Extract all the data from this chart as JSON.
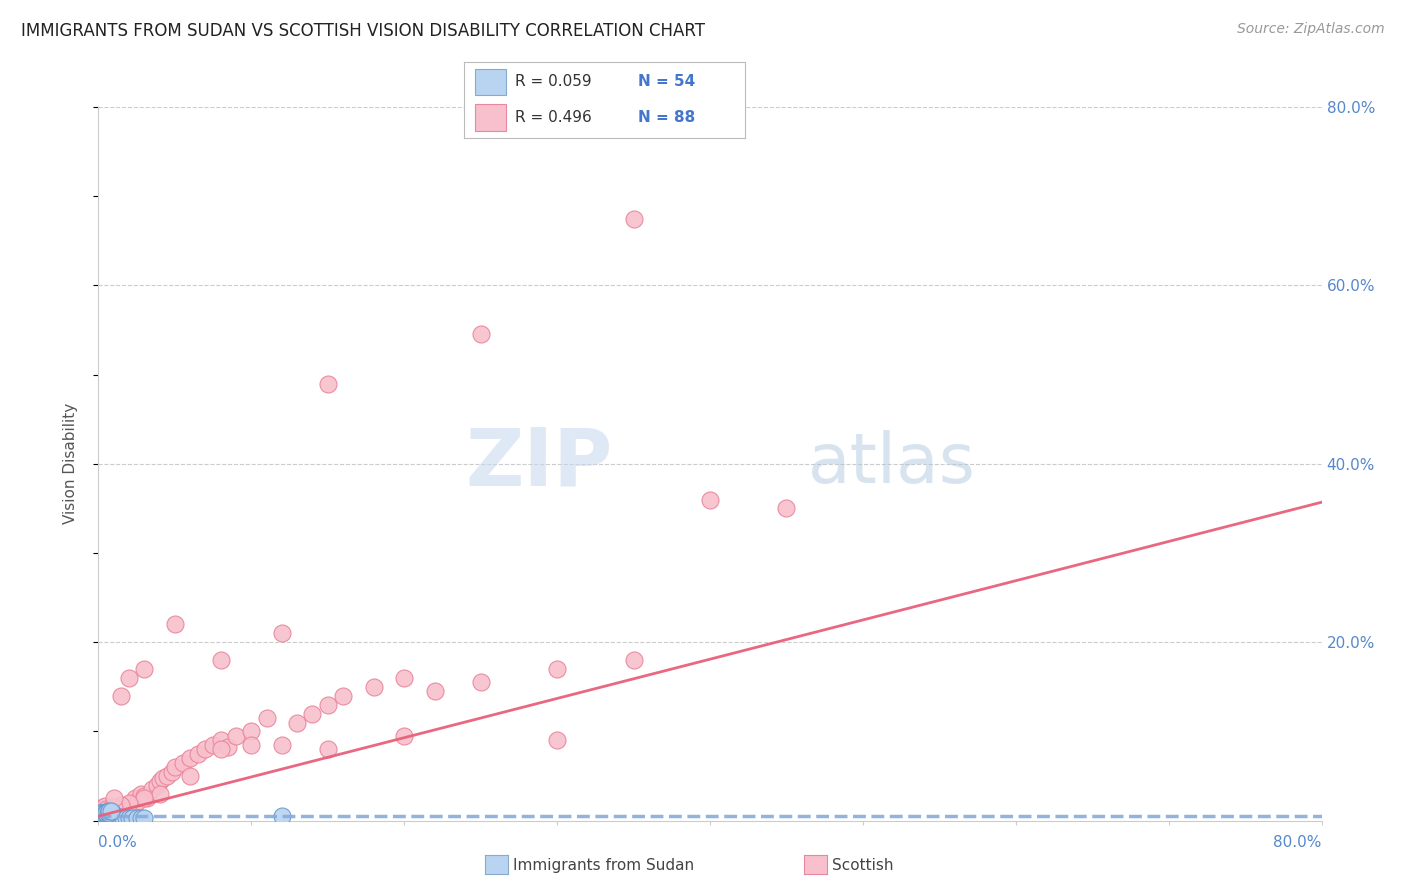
{
  "title": "IMMIGRANTS FROM SUDAN VS SCOTTISH VISION DISABILITY CORRELATION CHART",
  "source": "Source: ZipAtlas.com",
  "ylabel": "Vision Disability",
  "legend_r1": "R = 0.059",
  "legend_n1": "N = 54",
  "legend_r2": "R = 0.496",
  "legend_n2": "N = 88",
  "color_blue_fill": "#b8d4f0",
  "color_blue_edge": "#6699cc",
  "color_pink_fill": "#f8c0cc",
  "color_pink_edge": "#e8849a",
  "color_blue_line": "#88aadd",
  "color_pink_line": "#e8607a",
  "watermark_zip": "ZIP",
  "watermark_atlas": "atlas",
  "xlim": [
    0.0,
    0.8
  ],
  "ylim": [
    0.0,
    0.8
  ],
  "blue_scatter_x": [
    0.001,
    0.001,
    0.001,
    0.002,
    0.002,
    0.002,
    0.002,
    0.003,
    0.003,
    0.003,
    0.003,
    0.004,
    0.004,
    0.004,
    0.005,
    0.005,
    0.005,
    0.006,
    0.006,
    0.006,
    0.007,
    0.007,
    0.007,
    0.008,
    0.008,
    0.008,
    0.009,
    0.009,
    0.01,
    0.01,
    0.011,
    0.011,
    0.012,
    0.012,
    0.013,
    0.014,
    0.015,
    0.016,
    0.018,
    0.02,
    0.022,
    0.025,
    0.028,
    0.03,
    0.001,
    0.002,
    0.003,
    0.004,
    0.005,
    0.006,
    0.007,
    0.12,
    0.007,
    0.008
  ],
  "blue_scatter_y": [
    0.003,
    0.005,
    0.007,
    0.003,
    0.005,
    0.007,
    0.009,
    0.003,
    0.005,
    0.007,
    0.009,
    0.003,
    0.005,
    0.007,
    0.003,
    0.005,
    0.007,
    0.003,
    0.005,
    0.007,
    0.003,
    0.005,
    0.007,
    0.003,
    0.005,
    0.007,
    0.003,
    0.005,
    0.003,
    0.005,
    0.003,
    0.005,
    0.003,
    0.005,
    0.003,
    0.003,
    0.003,
    0.003,
    0.003,
    0.003,
    0.003,
    0.003,
    0.003,
    0.003,
    0.009,
    0.009,
    0.009,
    0.009,
    0.009,
    0.009,
    0.009,
    0.005,
    0.011,
    0.011
  ],
  "pink_scatter_x": [
    0.001,
    0.001,
    0.002,
    0.002,
    0.003,
    0.003,
    0.004,
    0.004,
    0.005,
    0.005,
    0.006,
    0.007,
    0.008,
    0.009,
    0.01,
    0.011,
    0.012,
    0.013,
    0.014,
    0.015,
    0.016,
    0.017,
    0.018,
    0.019,
    0.02,
    0.022,
    0.024,
    0.026,
    0.028,
    0.03,
    0.032,
    0.035,
    0.038,
    0.04,
    0.042,
    0.045,
    0.048,
    0.05,
    0.055,
    0.06,
    0.065,
    0.07,
    0.075,
    0.08,
    0.085,
    0.09,
    0.1,
    0.11,
    0.12,
    0.13,
    0.14,
    0.15,
    0.16,
    0.18,
    0.2,
    0.22,
    0.25,
    0.3,
    0.35,
    0.4,
    0.45,
    0.3,
    0.2,
    0.15,
    0.1,
    0.08,
    0.06,
    0.04,
    0.03,
    0.02,
    0.015,
    0.01,
    0.008,
    0.006,
    0.004,
    0.003,
    0.002,
    0.001,
    0.12,
    0.08,
    0.05,
    0.03,
    0.02,
    0.015,
    0.01,
    0.35,
    0.25,
    0.15
  ],
  "pink_scatter_y": [
    0.003,
    0.01,
    0.005,
    0.012,
    0.007,
    0.015,
    0.008,
    0.016,
    0.005,
    0.013,
    0.01,
    0.012,
    0.008,
    0.015,
    0.01,
    0.008,
    0.012,
    0.01,
    0.015,
    0.012,
    0.008,
    0.015,
    0.01,
    0.012,
    0.018,
    0.02,
    0.025,
    0.022,
    0.03,
    0.028,
    0.025,
    0.035,
    0.04,
    0.045,
    0.048,
    0.05,
    0.055,
    0.06,
    0.065,
    0.07,
    0.075,
    0.08,
    0.085,
    0.09,
    0.082,
    0.095,
    0.1,
    0.115,
    0.085,
    0.11,
    0.12,
    0.13,
    0.14,
    0.15,
    0.16,
    0.145,
    0.155,
    0.17,
    0.18,
    0.36,
    0.35,
    0.09,
    0.095,
    0.08,
    0.085,
    0.08,
    0.05,
    0.03,
    0.025,
    0.02,
    0.018,
    0.015,
    0.012,
    0.01,
    0.008,
    0.006,
    0.005,
    0.003,
    0.21,
    0.18,
    0.22,
    0.17,
    0.16,
    0.14,
    0.025,
    0.675,
    0.545,
    0.49
  ]
}
